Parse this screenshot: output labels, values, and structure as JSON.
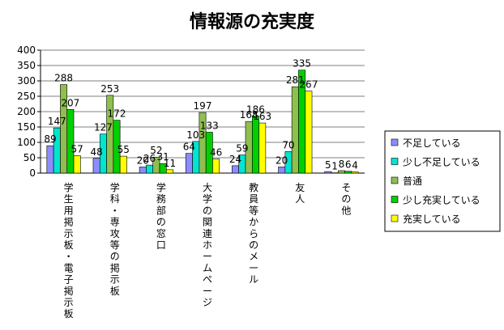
{
  "chart_data": {
    "type": "bar",
    "title": "情報源の充実度",
    "xlabel": "",
    "ylabel": "",
    "ylim": [
      0,
      400
    ],
    "yticks": [
      0,
      50,
      100,
      150,
      200,
      250,
      300,
      350,
      400
    ],
    "grid": true,
    "legend_position": "right",
    "categories": [
      "学生用掲示板・電子掲示板",
      "学科・専攻等の掲示板",
      "学務部の窓口",
      "大学の関連ホームページ",
      "教員等からのメール",
      "友人",
      "その他"
    ],
    "series": [
      {
        "name": "不足している",
        "color": "#8c8cff",
        "values": [
          89,
          48,
          20,
          64,
          24,
          20,
          5
        ]
      },
      {
        "name": "少し不足している",
        "color": "#00e5d0",
        "values": [
          147,
          127,
          26,
          103,
          59,
          70,
          1
        ]
      },
      {
        "name": "普通",
        "color": "#8fbf4f",
        "values": [
          288,
          253,
          52,
          197,
          168,
          281,
          8
        ]
      },
      {
        "name": "少し充実している",
        "color": "#00d000",
        "values": [
          207,
          172,
          31,
          133,
          186,
          335,
          6
        ]
      },
      {
        "name": "充実している",
        "color": "#ffff00",
        "values": [
          57,
          55,
          11,
          46,
          163,
          267,
          4
        ]
      }
    ]
  }
}
